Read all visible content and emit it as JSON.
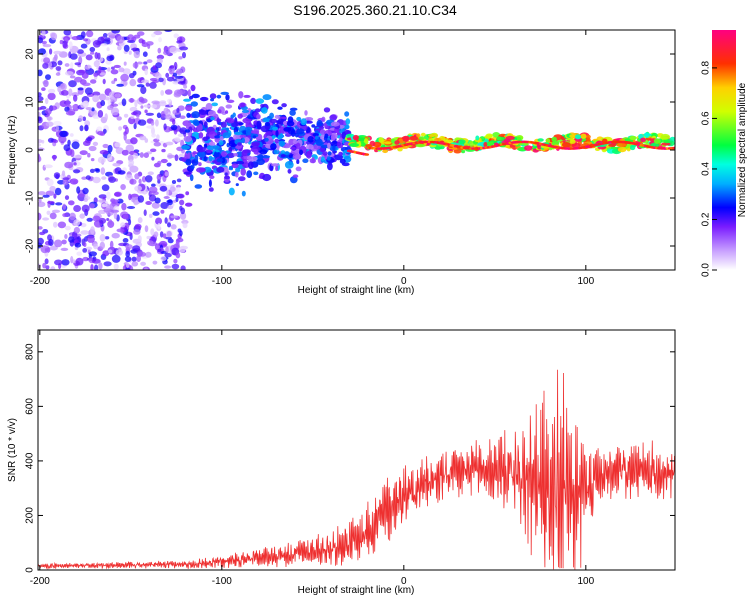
{
  "title": "S196.2025.360.21.10.C34",
  "chart_data": [
    {
      "type": "heatmap",
      "name": "spectrogram",
      "xlabel": "Height of straight line (km)",
      "ylabel": "Frequency (Hz)",
      "xlim": [
        -201,
        149
      ],
      "ylim": [
        -25,
        25
      ],
      "xticks": [
        -200,
        -100,
        0,
        100
      ],
      "yticks": [
        -20,
        -10,
        0,
        10,
        20
      ],
      "colorbar": {
        "label": "Normalized spectral amplitude",
        "range": [
          0.0,
          0.95
        ],
        "ticks": [
          0.0,
          0.2,
          0.4,
          0.6,
          0.8
        ],
        "tick_labels": [
          "0.0",
          "0.2",
          "0.4",
          "0.6",
          "0.8"
        ]
      },
      "features": [
        {
          "x_range": [
            -201,
            -120
          ],
          "f_center": 0,
          "f_spread": 25,
          "amplitude_range": [
            0.02,
            0.25
          ],
          "description": "broadband noise"
        },
        {
          "x_range": [
            -120,
            -30
          ],
          "f_center": 2,
          "f_spread": 10,
          "amplitude_range": [
            0.1,
            0.35
          ]
        },
        {
          "x_range": [
            -30,
            149
          ],
          "f_center": 1.5,
          "f_spread": 1.5,
          "amplitude_range": [
            0.4,
            0.95
          ],
          "description": "narrow carrier line"
        }
      ]
    },
    {
      "type": "line",
      "name": "snr",
      "xlabel": "Height of straight line (km)",
      "ylabel": "SNR (10 * v/v)",
      "xlim": [
        -201,
        149
      ],
      "ylim": [
        0,
        880
      ],
      "xticks": [
        -200,
        -100,
        0,
        100
      ],
      "yticks": [
        0,
        200,
        400,
        600,
        800
      ],
      "color": "#ee3030",
      "envelope": {
        "x": [
          -201,
          -150,
          -120,
          -100,
          -80,
          -60,
          -40,
          -25,
          -15,
          0,
          20,
          40,
          60,
          75,
          85,
          95,
          105,
          120,
          149
        ],
        "base": [
          15,
          18,
          20,
          30,
          45,
          60,
          80,
          110,
          180,
          280,
          340,
          370,
          360,
          300,
          280,
          250,
          330,
          360,
          360
        ],
        "amplitude": [
          10,
          12,
          15,
          25,
          35,
          45,
          60,
          90,
          120,
          110,
          90,
          100,
          150,
          350,
          450,
          350,
          120,
          100,
          110
        ]
      }
    }
  ]
}
